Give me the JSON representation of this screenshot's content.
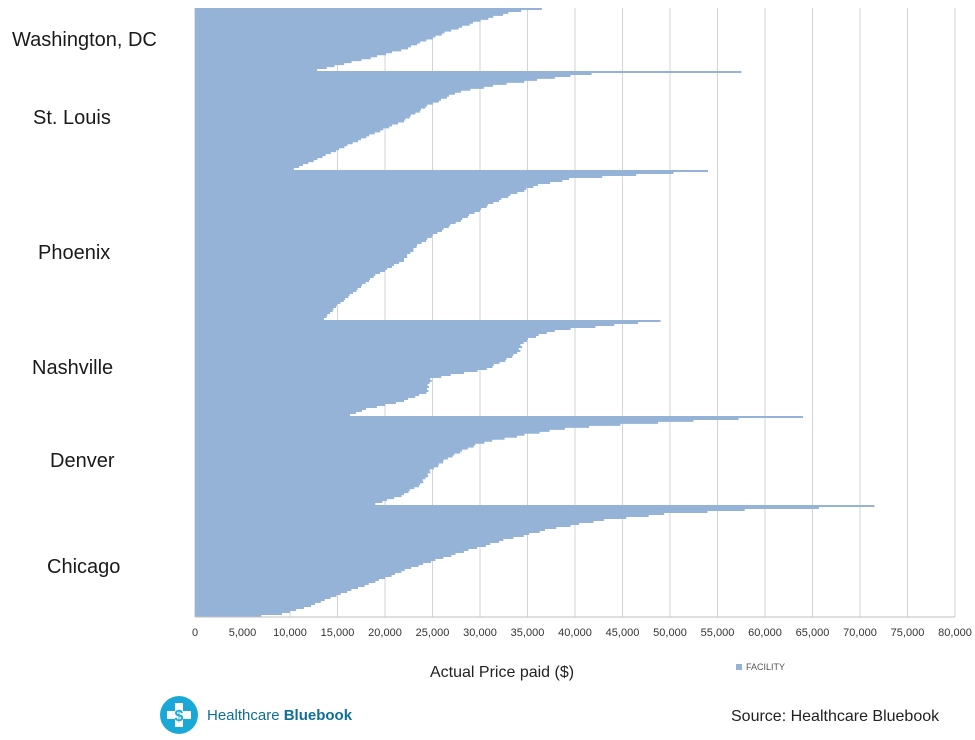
{
  "chart_data": {
    "type": "bar",
    "orientation": "horizontal",
    "description_xlabel": "Actual Price paid ($)",
    "xlim": [
      0,
      80000
    ],
    "xticks": [
      0,
      5000,
      10000,
      15000,
      20000,
      25000,
      30000,
      35000,
      40000,
      45000,
      50000,
      55000,
      60000,
      65000,
      70000,
      75000,
      80000
    ],
    "xtick_labels": [
      "0",
      "5,000",
      "10,000",
      "15,000",
      "20,000",
      "25,000",
      "30,000",
      "35,000",
      "40,000",
      "45,000",
      "50,000",
      "55,000",
      "60,000",
      "65,000",
      "70,000",
      "75,000",
      "80,000"
    ],
    "grid": "vertical",
    "legend_position": "bottom-right",
    "series_color": "#95b3d7",
    "groups": [
      {
        "name": "Washington, DC",
        "max": 36500,
        "min": 12000,
        "profile": [
          [
            0,
            36500
          ],
          [
            0.04,
            34000
          ],
          [
            0.15,
            31000
          ],
          [
            0.35,
            27000
          ],
          [
            0.5,
            24500
          ],
          [
            0.65,
            22000
          ],
          [
            0.8,
            18000
          ],
          [
            0.9,
            15000
          ],
          [
            1,
            12000
          ]
        ]
      },
      {
        "name": "St. Louis",
        "max": 57500,
        "min": 10000,
        "profile": [
          [
            0,
            57500
          ],
          [
            0.02,
            42000
          ],
          [
            0.06,
            38000
          ],
          [
            0.12,
            33000
          ],
          [
            0.2,
            28000
          ],
          [
            0.35,
            24500
          ],
          [
            0.5,
            22000
          ],
          [
            0.6,
            19500
          ],
          [
            0.75,
            16000
          ],
          [
            0.88,
            13000
          ],
          [
            1,
            10000
          ]
        ]
      },
      {
        "name": "Phoenix",
        "max": 54000,
        "min": 13500,
        "profile": [
          [
            0,
            54000
          ],
          [
            0.02,
            49000
          ],
          [
            0.05,
            40000
          ],
          [
            0.1,
            36000
          ],
          [
            0.2,
            32000
          ],
          [
            0.3,
            29000
          ],
          [
            0.4,
            26000
          ],
          [
            0.5,
            23500
          ],
          [
            0.6,
            22000
          ],
          [
            0.7,
            19000
          ],
          [
            0.8,
            17000
          ],
          [
            0.9,
            15000
          ],
          [
            1,
            13500
          ]
        ]
      },
      {
        "name": "Nashville",
        "max": 49000,
        "min": 16000,
        "profile": [
          [
            0,
            49000
          ],
          [
            0.03,
            46000
          ],
          [
            0.1,
            38000
          ],
          [
            0.2,
            35000
          ],
          [
            0.35,
            34000
          ],
          [
            0.5,
            31000
          ],
          [
            0.6,
            25000
          ],
          [
            0.75,
            24500
          ],
          [
            0.85,
            21500
          ],
          [
            0.92,
            18000
          ],
          [
            1,
            16000
          ]
        ]
      },
      {
        "name": "Denver",
        "max": 64000,
        "min": 18500,
        "profile": [
          [
            0,
            64000
          ],
          [
            0.02,
            58000
          ],
          [
            0.06,
            50000
          ],
          [
            0.12,
            40000
          ],
          [
            0.2,
            35000
          ],
          [
            0.3,
            30000
          ],
          [
            0.45,
            27000
          ],
          [
            0.6,
            25000
          ],
          [
            0.75,
            24000
          ],
          [
            0.88,
            22000
          ],
          [
            1,
            18500
          ]
        ]
      },
      {
        "name": "Chicago",
        "max": 71500,
        "min": 4000,
        "profile": [
          [
            0,
            71500
          ],
          [
            0.01,
            70000
          ],
          [
            0.03,
            60000
          ],
          [
            0.07,
            50000
          ],
          [
            0.13,
            43000
          ],
          [
            0.2,
            38000
          ],
          [
            0.3,
            33000
          ],
          [
            0.42,
            28000
          ],
          [
            0.55,
            23000
          ],
          [
            0.68,
            19000
          ],
          [
            0.8,
            15000
          ],
          [
            0.9,
            12000
          ],
          [
            0.97,
            9000
          ],
          [
            1,
            4000
          ]
        ]
      }
    ],
    "legend": [
      {
        "name": "FACILITY",
        "color": "#95b3d7"
      }
    ]
  },
  "xlabel": "Actual Price paid ($)",
  "legend_label": "FACILITY",
  "logo": {
    "prefix": "Healthcare ",
    "bold": "Bluebook"
  },
  "source": "Source: Healthcare Bluebook"
}
